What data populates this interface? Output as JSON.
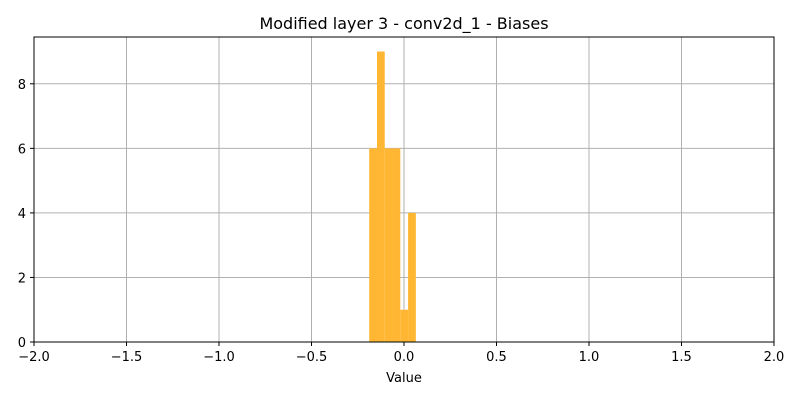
{
  "chart_data": {
    "type": "bar",
    "title": "Modified layer 3 - conv2d_1 - Biases",
    "xlabel": "Value",
    "ylabel": "",
    "xlim": [
      -2.0,
      2.0
    ],
    "ylim": [
      0,
      9.45
    ],
    "x_ticks": [
      -2.0,
      -1.5,
      -1.0,
      -0.5,
      0.0,
      0.5,
      1.0,
      1.5,
      2.0
    ],
    "x_tick_labels": [
      "−2.0",
      "−1.5",
      "−1.0",
      "−0.5",
      "0.0",
      "0.5",
      "1.0",
      "1.5",
      "2.0"
    ],
    "y_ticks": [
      0,
      2,
      4,
      6,
      8
    ],
    "y_tick_labels": [
      "0",
      "2",
      "4",
      "6",
      "8"
    ],
    "grid": true,
    "bar_color": "#FFB733",
    "bins": [
      {
        "x0": -0.188,
        "x1": -0.146,
        "count": 6
      },
      {
        "x0": -0.146,
        "x1": -0.104,
        "count": 9
      },
      {
        "x0": -0.104,
        "x1": -0.062,
        "count": 6
      },
      {
        "x0": -0.062,
        "x1": -0.02,
        "count": 6
      },
      {
        "x0": -0.02,
        "x1": 0.022,
        "count": 1
      },
      {
        "x0": 0.022,
        "x1": 0.064,
        "count": 4
      }
    ]
  }
}
